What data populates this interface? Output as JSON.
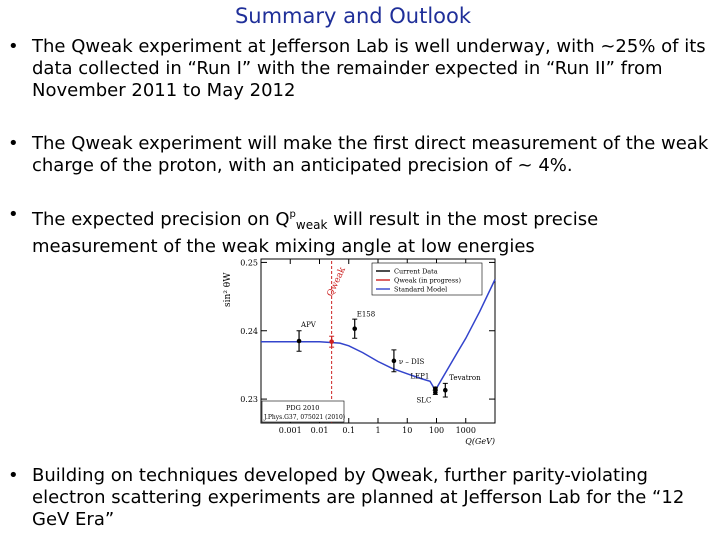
{
  "slide": {
    "title": "Summary and Outlook",
    "bullet_symbol": "•",
    "bullets": [
      {
        "text": "The Qweak experiment at Jefferson Lab is well underway, with ~25% of its data collected in “Run I” with the remainder expected in “Run II” from November 2011 to May 2012"
      },
      {
        "text": "The Qweak experiment will make the first direct measurement of the weak charge of the proton, with an anticipated precision of ~ 4%."
      },
      {
        "pre": "The expected precision on Q",
        "sup": "p",
        "sub": "weak",
        "post": " will result in the most precise measurement of the weak mixing angle at low energies"
      },
      {
        "text": "Building on techniques developed by Qweak, further parity-violating electron scattering experiments are planned at Jefferson Lab for the “12 GeV Era”"
      }
    ]
  },
  "chart_data": {
    "type": "line",
    "xscale": "log",
    "xlim": [
      0.0001,
      10000
    ],
    "ylim": [
      0.2265,
      0.2505
    ],
    "ylabel": "sin² θW",
    "xlabel": "Q(GeV)",
    "yticks": [
      {
        "value": 0.25,
        "label": "0.25"
      },
      {
        "value": 0.24,
        "label": "0.24"
      },
      {
        "value": 0.23,
        "label": "0.23"
      }
    ],
    "xticks": [
      {
        "value": 0.001,
        "label": "0.001"
      },
      {
        "value": 0.01,
        "label": "0.01"
      },
      {
        "value": 0.1,
        "label": "0.1"
      },
      {
        "value": 1,
        "label": "1"
      },
      {
        "value": 10,
        "label": "10"
      },
      {
        "value": 100,
        "label": "100"
      },
      {
        "value": 1000,
        "label": "1000"
      }
    ],
    "legend": {
      "placement": "top-right",
      "entries": [
        {
          "label": "Current Data",
          "color": "#000000"
        },
        {
          "label": "Qweak (in progress)",
          "color": "#cc2222"
        },
        {
          "label": "Standard Model",
          "color": "#3344cc"
        }
      ]
    },
    "series": [
      {
        "name": "Standard Model",
        "color": "#3344cc",
        "x": [
          0.0001,
          0.001,
          0.01,
          0.05,
          0.1,
          0.3,
          1,
          3,
          10,
          30,
          60,
          91.2,
          100,
          200,
          500,
          1000,
          3000,
          10000
        ],
        "y": [
          0.2384,
          0.2384,
          0.2384,
          0.2382,
          0.2378,
          0.2368,
          0.2355,
          0.2345,
          0.2337,
          0.233,
          0.2326,
          0.2313,
          0.2316,
          0.2338,
          0.2367,
          0.2389,
          0.2428,
          0.2475
        ]
      }
    ],
    "points": [
      {
        "label": "APV",
        "x": 0.002,
        "y": 0.2385,
        "err": 0.0015,
        "color": "#000000"
      },
      {
        "label": "Qweak",
        "x": 0.026,
        "y": 0.2384,
        "err": 0.0008,
        "color": "#cc2222"
      },
      {
        "label": "E158",
        "x": 0.16,
        "y": 0.2403,
        "err": 0.0014,
        "color": "#000000"
      },
      {
        "label": "ν – DIS",
        "x": 3.5,
        "y": 0.2356,
        "err": 0.0016,
        "color": "#000000"
      },
      {
        "label": "LEP1",
        "x": 91.2,
        "y": 0.23153,
        "err": 0.0002,
        "color": "#000000"
      },
      {
        "label": "SLC",
        "x": 91.2,
        "y": 0.23098,
        "err": 0.0003,
        "color": "#000000"
      },
      {
        "label": "Tevatron",
        "x": 200,
        "y": 0.2313,
        "err": 0.001,
        "color": "#000000"
      }
    ],
    "annotations": [
      {
        "text": "Qweak",
        "color": "#cc2222"
      },
      {
        "text": "PDG 2010"
      },
      {
        "text": "J.Phys.G37, 075021 (2010)"
      }
    ]
  }
}
